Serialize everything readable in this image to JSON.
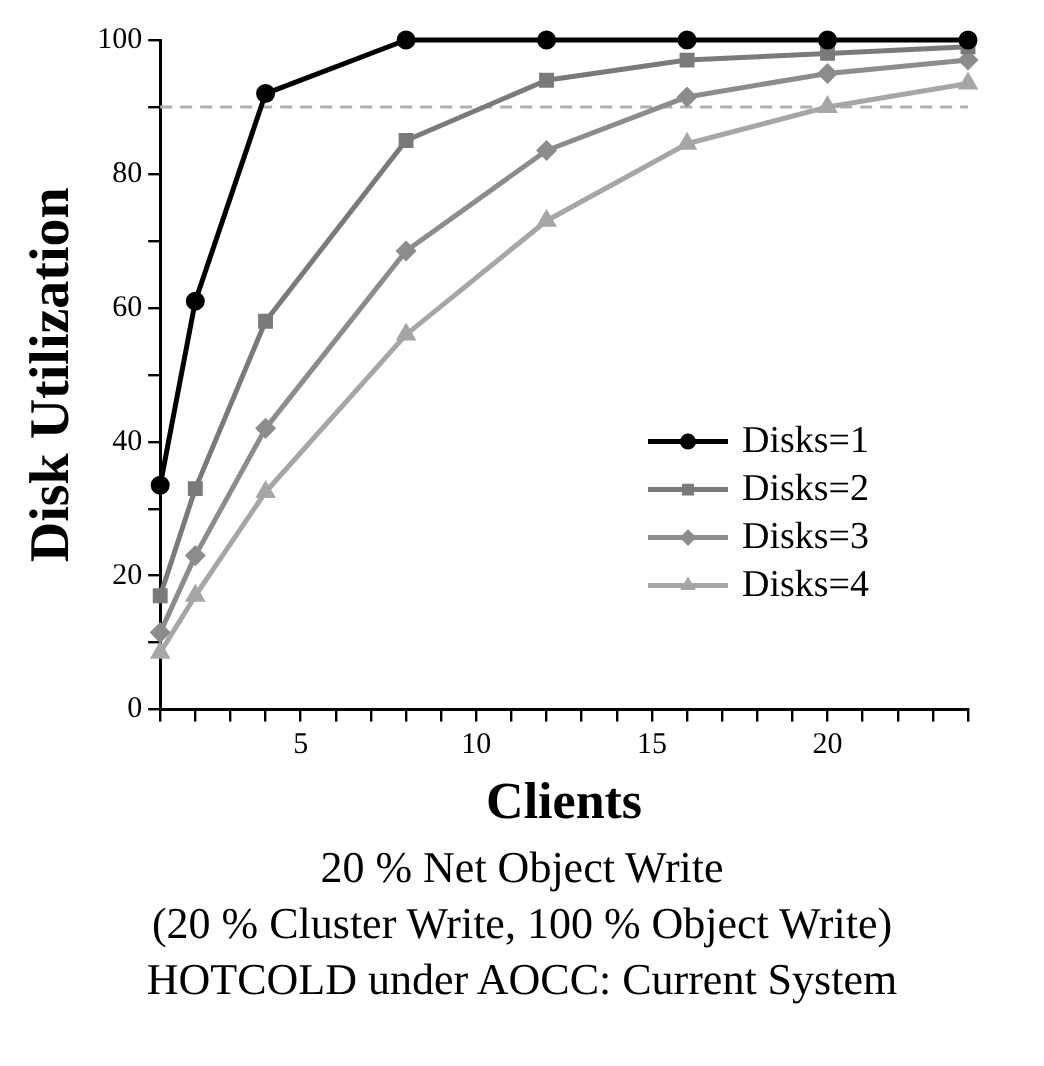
{
  "chart_data": {
    "type": "line",
    "title": "20 % Net Object Write",
    "subtitle": "(20 % Cluster Write, 100 % Object Write)",
    "annotations": [
      "HOTCOLD under AOCC: Current System"
    ],
    "xlabel": "Clients",
    "ylabel": "Disk Utilization",
    "x": [
      1,
      2,
      4,
      8,
      12,
      16,
      20,
      24
    ],
    "series": [
      {
        "name": "Disks=1",
        "color": "#000000",
        "marker": "circle",
        "values": [
          33.5,
          61,
          92,
          100,
          100,
          100,
          100,
          100
        ]
      },
      {
        "name": "Disks=2",
        "color": "#7a7a7a",
        "marker": "square",
        "values": [
          17,
          33,
          58,
          85,
          94,
          97,
          98,
          99
        ]
      },
      {
        "name": "Disks=3",
        "color": "#8c8c8c",
        "marker": "diamond",
        "values": [
          11.5,
          23,
          42,
          68.5,
          83.5,
          91.5,
          95,
          97
        ]
      },
      {
        "name": "Disks=4",
        "color": "#a6a6a6",
        "marker": "triangle",
        "values": [
          8.5,
          17,
          32.5,
          56,
          73,
          84.5,
          90,
          93.5
        ]
      }
    ],
    "xlim": [
      1,
      24
    ],
    "xticks": [
      {
        "value": 1,
        "label": null
      },
      {
        "value": 2,
        "label": null
      },
      {
        "value": 3,
        "label": null
      },
      {
        "value": 4,
        "label": null
      },
      5,
      {
        "value": 6,
        "label": null
      },
      {
        "value": 7,
        "label": null
      },
      {
        "value": 8,
        "label": null
      },
      {
        "value": 9,
        "label": null
      },
      10,
      {
        "value": 11,
        "label": null
      },
      {
        "value": 12,
        "label": null
      },
      {
        "value": 13,
        "label": null
      },
      {
        "value": 14,
        "label": null
      },
      15,
      {
        "value": 16,
        "label": null
      },
      {
        "value": 17,
        "label": null
      },
      {
        "value": 18,
        "label": null
      },
      {
        "value": 19,
        "label": null
      },
      20,
      {
        "value": 21,
        "label": null
      },
      {
        "value": 22,
        "label": null
      },
      {
        "value": 23,
        "label": null
      },
      {
        "value": 24,
        "label": null
      }
    ],
    "ylim": [
      0,
      100
    ],
    "yticks": [
      0,
      {
        "value": 10,
        "label": null
      },
      20,
      {
        "value": 30,
        "label": null
      },
      40,
      {
        "value": 50,
        "label": null
      },
      60,
      {
        "value": 70,
        "label": null
      },
      80,
      {
        "value": 90,
        "label": null
      },
      100
    ],
    "ref_lines": [
      {
        "axis": "y",
        "value": 90,
        "color": "#b0b0b0",
        "line_style": "dashed"
      }
    ],
    "grid": false,
    "legend": "bottom right",
    "line_style": "solid"
  }
}
